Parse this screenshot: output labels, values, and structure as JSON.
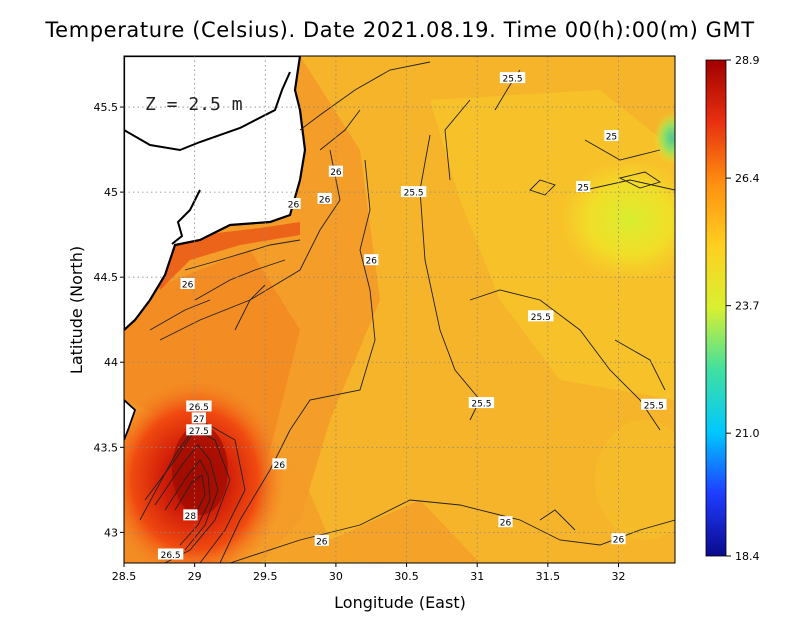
{
  "title": "Temperature (Celsius). Date 2021.08.19. Time 00(h):00(m) GMT",
  "depth_label": "Z = 2.5 m",
  "x_axis": {
    "label": "Longitude (East)",
    "range": [
      28.5,
      32.4
    ],
    "ticks": [
      "28.5",
      "29",
      "29.5",
      "30",
      "30.5",
      "31",
      "31.5",
      "32"
    ]
  },
  "y_axis": {
    "label": "Latitude (North)",
    "range": [
      42.82,
      45.8
    ],
    "ticks": [
      "43",
      "43.5",
      "44",
      "44.5",
      "45",
      "45.5"
    ]
  },
  "colorbar": {
    "min": 18.4,
    "max": 28.9,
    "ticks": [
      "18.4",
      "21.0",
      "23.7",
      "26.4",
      "28.9"
    ],
    "colors": [
      "#0a0a8c",
      "#1e3cff",
      "#00c8ff",
      "#40e0a0",
      "#d8f030",
      "#ffd020",
      "#ff9010",
      "#e83010",
      "#a00000"
    ]
  },
  "grid": "dotted",
  "contour_labels": [
    {
      "text": "25.5",
      "lon": 31.25,
      "lat": 45.67
    },
    {
      "text": "25",
      "lon": 31.95,
      "lat": 45.33
    },
    {
      "text": "25",
      "lon": 31.75,
      "lat": 45.03
    },
    {
      "text": "25.5",
      "lon": 30.55,
      "lat": 45.0
    },
    {
      "text": "26",
      "lon": 30.0,
      "lat": 45.12
    },
    {
      "text": "26",
      "lon": 29.92,
      "lat": 44.96
    },
    {
      "text": "26",
      "lon": 29.7,
      "lat": 44.93
    },
    {
      "text": "26",
      "lon": 30.25,
      "lat": 44.6
    },
    {
      "text": "26",
      "lon": 28.95,
      "lat": 44.46
    },
    {
      "text": "25.5",
      "lon": 31.45,
      "lat": 44.27
    },
    {
      "text": "25.5",
      "lon": 31.03,
      "lat": 43.76
    },
    {
      "text": "25.5",
      "lon": 32.25,
      "lat": 43.75
    },
    {
      "text": "26.5",
      "lon": 29.03,
      "lat": 43.74
    },
    {
      "text": "27",
      "lon": 29.03,
      "lat": 43.67
    },
    {
      "text": "27.5",
      "lon": 29.03,
      "lat": 43.6
    },
    {
      "text": "26",
      "lon": 29.6,
      "lat": 43.4
    },
    {
      "text": "28",
      "lon": 28.97,
      "lat": 43.1
    },
    {
      "text": "26.5",
      "lon": 28.83,
      "lat": 42.87
    },
    {
      "text": "26",
      "lon": 29.9,
      "lat": 42.95
    },
    {
      "text": "26",
      "lon": 31.2,
      "lat": 43.06
    },
    {
      "text": "26",
      "lon": 32.0,
      "lat": 42.96
    }
  ]
}
